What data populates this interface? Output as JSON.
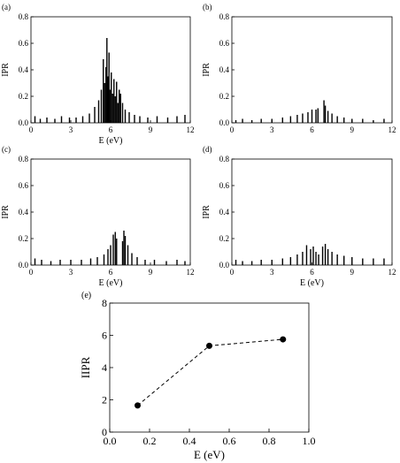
{
  "chart_data": [
    {
      "type": "bar",
      "panel_label": "(a)",
      "xlabel": "E (eV)",
      "ylabel": "IPR",
      "xlim": [
        0,
        12
      ],
      "ylim": [
        0,
        0.8
      ],
      "xticks": [
        0,
        3,
        6,
        9,
        12
      ],
      "yticks": [
        0.0,
        0.2,
        0.4,
        0.6,
        0.8
      ],
      "grid": false,
      "series": [
        {
          "x": [
            0.3,
            0.7,
            1.2,
            1.8,
            2.3,
            2.9,
            3.4,
            3.9,
            4.4,
            4.8,
            5.1,
            5.3,
            5.45,
            5.55,
            5.65,
            5.72,
            5.8,
            5.88,
            5.95,
            6.05,
            6.15,
            6.25,
            6.35,
            6.45,
            6.55,
            6.65,
            6.75,
            6.9,
            7.1,
            7.4,
            7.8,
            8.2,
            8.8,
            9.5,
            10.3,
            11.0,
            11.6
          ],
          "values": [
            0.05,
            0.03,
            0.04,
            0.03,
            0.05,
            0.04,
            0.04,
            0.05,
            0.07,
            0.12,
            0.17,
            0.25,
            0.48,
            0.3,
            0.42,
            0.64,
            0.35,
            0.53,
            0.25,
            0.38,
            0.22,
            0.33,
            0.2,
            0.31,
            0.15,
            0.25,
            0.22,
            0.15,
            0.1,
            0.08,
            0.06,
            0.05,
            0.04,
            0.05,
            0.04,
            0.05,
            0.06
          ]
        }
      ]
    },
    {
      "type": "bar",
      "panel_label": "(b)",
      "xlabel": "",
      "ylabel": "IPR",
      "xlim": [
        0,
        12
      ],
      "ylim": [
        0,
        0.8
      ],
      "xticks": [
        0,
        3,
        6,
        9,
        12
      ],
      "yticks": [
        0.0,
        0.2,
        0.4,
        0.6,
        0.8
      ],
      "grid": false,
      "series": [
        {
          "x": [
            0.3,
            0.8,
            1.5,
            2.2,
            3.0,
            3.8,
            4.4,
            4.9,
            5.3,
            5.7,
            6.0,
            6.3,
            6.45,
            6.9,
            7.0,
            7.2,
            7.5,
            7.9,
            8.4,
            9.0,
            9.8,
            10.6,
            11.4
          ],
          "values": [
            0.02,
            0.03,
            0.02,
            0.03,
            0.03,
            0.04,
            0.05,
            0.06,
            0.07,
            0.08,
            0.1,
            0.1,
            0.11,
            0.17,
            0.13,
            0.09,
            0.07,
            0.05,
            0.04,
            0.03,
            0.03,
            0.02,
            0.03
          ]
        }
      ]
    },
    {
      "type": "bar",
      "panel_label": "(c)",
      "xlabel": "E (eV)",
      "ylabel": "IPR",
      "xlim": [
        0,
        12
      ],
      "ylim": [
        0,
        0.8
      ],
      "xticks": [
        0,
        3,
        6,
        9,
        12
      ],
      "yticks": [
        0.0,
        0.2,
        0.4,
        0.6,
        0.8
      ],
      "grid": false,
      "series": [
        {
          "x": [
            0.3,
            0.8,
            1.5,
            2.2,
            3.0,
            3.8,
            4.5,
            5.0,
            5.5,
            5.8,
            6.0,
            6.2,
            6.35,
            6.45,
            6.9,
            7.0,
            7.1,
            7.3,
            7.6,
            8.0,
            8.6,
            9.3,
            10.2,
            11.0,
            11.6
          ],
          "values": [
            0.05,
            0.04,
            0.03,
            0.04,
            0.04,
            0.04,
            0.05,
            0.06,
            0.08,
            0.12,
            0.15,
            0.23,
            0.25,
            0.2,
            0.18,
            0.26,
            0.22,
            0.15,
            0.09,
            0.06,
            0.04,
            0.04,
            0.03,
            0.04,
            0.03
          ]
        }
      ]
    },
    {
      "type": "bar",
      "panel_label": "(d)",
      "xlabel": "E (eV)",
      "ylabel": "IPR",
      "xlim": [
        0,
        12
      ],
      "ylim": [
        0,
        0.8
      ],
      "xticks": [
        0,
        3,
        6,
        9,
        12
      ],
      "yticks": [
        0.0,
        0.2,
        0.4,
        0.6,
        0.8
      ],
      "grid": false,
      "series": [
        {
          "x": [
            0.3,
            0.8,
            1.5,
            2.2,
            3.0,
            3.8,
            4.4,
            4.9,
            5.3,
            5.6,
            5.9,
            6.1,
            6.3,
            6.5,
            6.8,
            7.0,
            7.2,
            7.5,
            7.9,
            8.4,
            9.0,
            9.8,
            10.6,
            11.4
          ],
          "values": [
            0.04,
            0.03,
            0.03,
            0.04,
            0.04,
            0.05,
            0.06,
            0.08,
            0.1,
            0.15,
            0.12,
            0.14,
            0.1,
            0.08,
            0.14,
            0.16,
            0.12,
            0.1,
            0.08,
            0.07,
            0.06,
            0.05,
            0.05,
            0.05
          ]
        }
      ]
    },
    {
      "type": "line",
      "panel_label": "(e)",
      "xlabel": "E (eV)",
      "ylabel": "IIPR",
      "xlim": [
        0,
        1.0
      ],
      "ylim": [
        0,
        8
      ],
      "xticks": [
        0.0,
        0.2,
        0.4,
        0.6,
        0.8,
        1.0
      ],
      "yticks": [
        0,
        2,
        4,
        6,
        8
      ],
      "grid": false,
      "line_style": "dashed",
      "marker": "circle",
      "series": [
        {
          "x": [
            0.14,
            0.5,
            0.87
          ],
          "values": [
            1.65,
            5.35,
            5.75
          ]
        }
      ]
    }
  ]
}
